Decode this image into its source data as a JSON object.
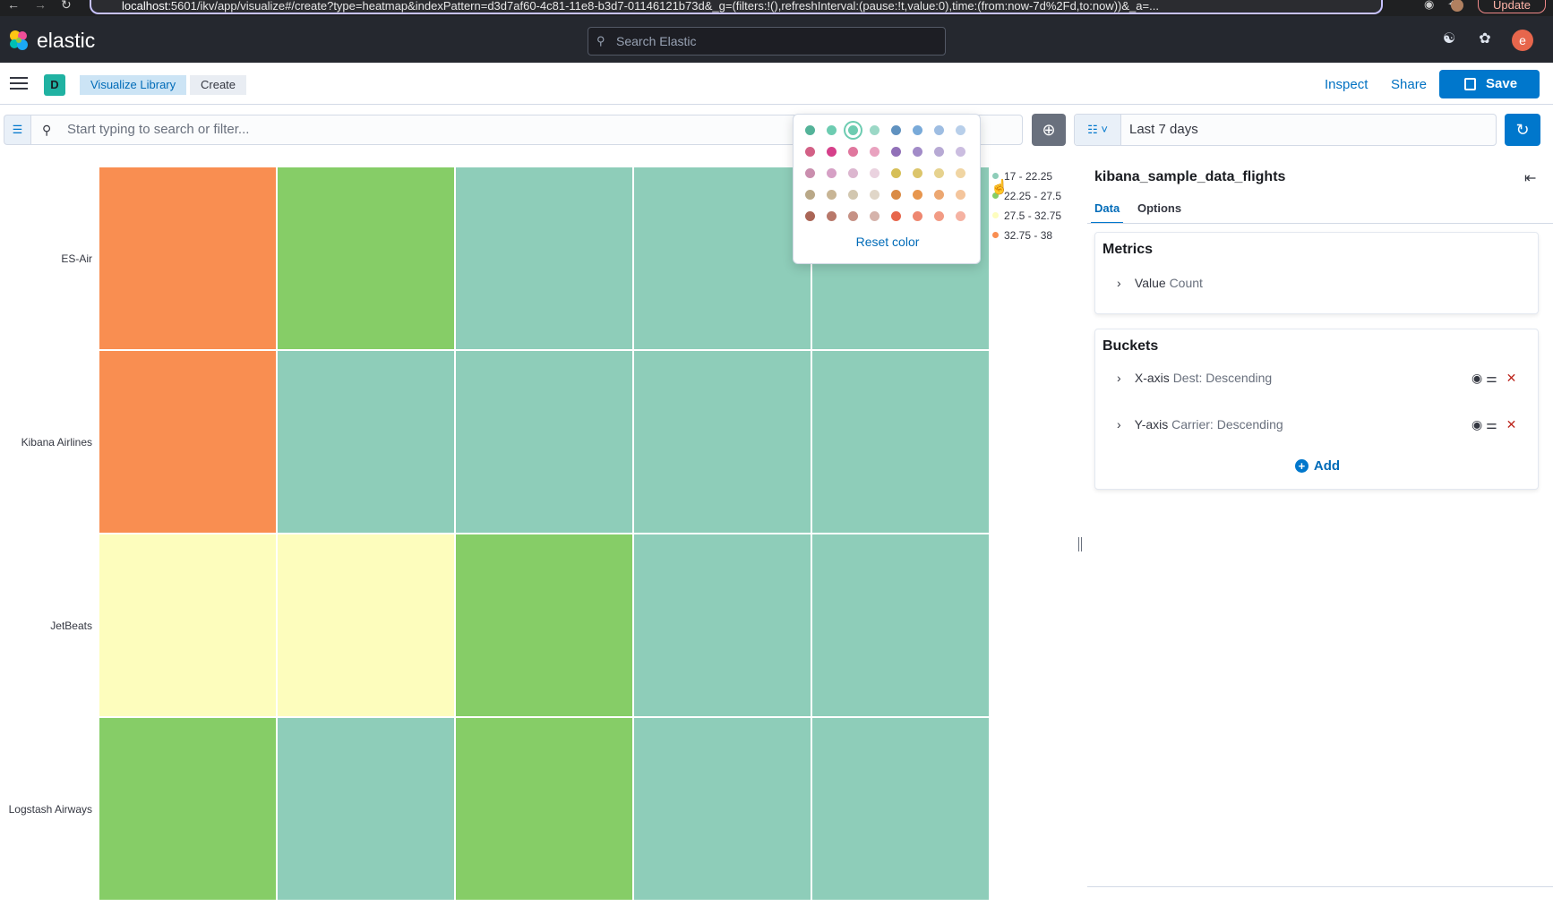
{
  "browser": {
    "url_host": "localhost",
    "url_rest": ":5601/ikv/app/visualize#/create?type=heatmap&indexPattern=d3d7af60-4c81-11e8-b3d7-01146121b73d&_g=(filters:!(),refreshInterval:(pause:!t,value:0),time:(from:now-7d%2Fd,to:now))&_a=...",
    "update_label": "Update"
  },
  "header": {
    "logo_text": "elastic",
    "search_placeholder": "Search Elastic",
    "avatar_letter": "e"
  },
  "app_bar": {
    "space_letter": "D",
    "breadcrumbs": [
      "Visualize Library",
      "Create"
    ],
    "inspect_label": "Inspect",
    "share_label": "Share",
    "save_label": "Save"
  },
  "query": {
    "placeholder": "Start typing to search or filter...",
    "date_label": "Last 7 days"
  },
  "chart_data": {
    "type": "heatmap",
    "y_categories": [
      "ES-Air",
      "Kibana Airlines",
      "JetBeats",
      "Logstash Airways"
    ],
    "x_count": 5,
    "legend": [
      {
        "label": "17 - 22.25",
        "color": "#8ecdb9"
      },
      {
        "label": "22.25 - 27.5",
        "color": "#86cd67"
      },
      {
        "label": "27.5 - 32.75",
        "color": "#fdfdbd"
      },
      {
        "label": "32.75 - 38",
        "color": "#f98e51"
      }
    ],
    "cell_bins": [
      [
        3,
        1,
        0,
        0,
        0
      ],
      [
        3,
        0,
        0,
        0,
        0
      ],
      [
        2,
        2,
        1,
        0,
        0
      ],
      [
        1,
        0,
        1,
        0,
        0
      ]
    ]
  },
  "color_picker": {
    "swatches": [
      [
        "#54b399",
        "#6dccb1",
        "#6dccb1",
        "#9bd8c6",
        "#6092c0",
        "#79aad9",
        "#9ebde2",
        "#b8cfea"
      ],
      [
        "#d36086",
        "#d6408a",
        "#e0779e",
        "#e9a2bf",
        "#9170b8",
        "#a28bc8",
        "#b7a9d4",
        "#cbbde0"
      ],
      [
        "#ca8eae",
        "#d6a0c5",
        "#dcb6cf",
        "#ead2df",
        "#d6bf57",
        "#dcc56b",
        "#e6d28e",
        "#f0d5a3"
      ],
      [
        "#b9a888",
        "#c8b595",
        "#d2c7b0",
        "#e0d6c8",
        "#da8b45",
        "#e7964e",
        "#eca771",
        "#f4c59c"
      ],
      [
        "#aa6556",
        "#b8786a",
        "#c69185",
        "#d5b3ab",
        "#e7664c",
        "#ee8770",
        "#f29b84",
        "#f5b2a2"
      ]
    ],
    "selected_row": 0,
    "selected_col": 2,
    "reset_label": "Reset color"
  },
  "side_panel": {
    "index_name": "kibana_sample_data_flights",
    "tabs": [
      "Data",
      "Options"
    ],
    "metrics_title": "Metrics",
    "metric_row": {
      "label": "Value",
      "sub": "Count"
    },
    "buckets_title": "Buckets",
    "bucket_rows": [
      {
        "label": "X-axis",
        "sub": "Dest: Descending"
      },
      {
        "label": "Y-axis",
        "sub": "Carrier: Descending"
      }
    ],
    "add_label": "Add"
  }
}
